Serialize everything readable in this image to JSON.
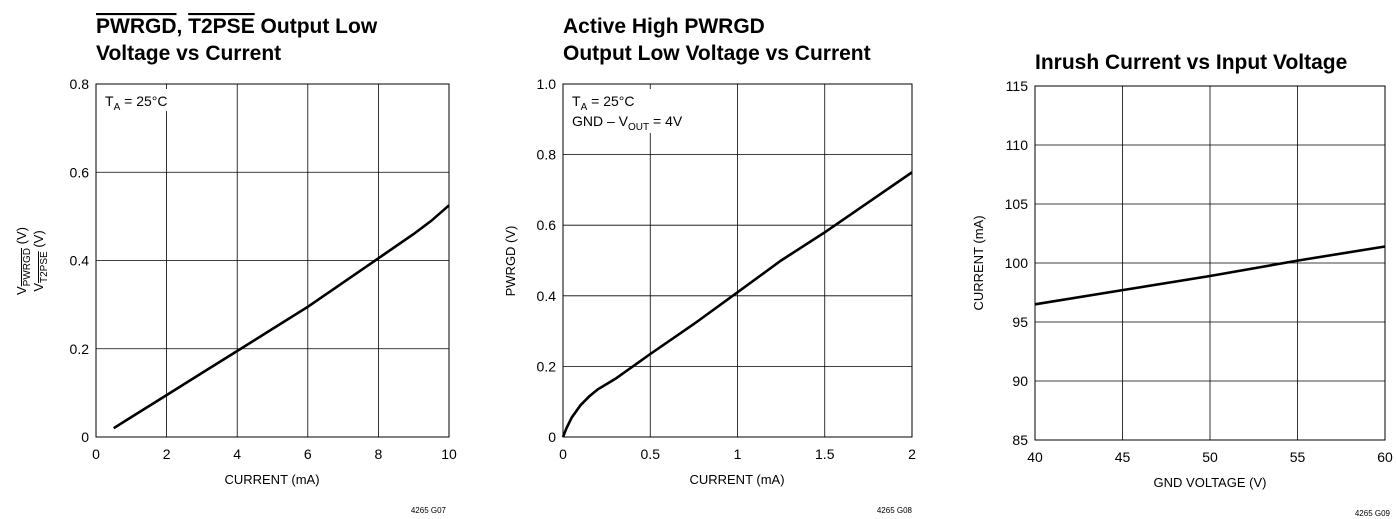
{
  "chart_data": [
    {
      "type": "line",
      "title_lines": [
        "PWRGD, T2PSE Output Low",
        "Voltage vs Current"
      ],
      "title_overlines": [
        "PWRGD",
        "T2PSE"
      ],
      "xlabel": "CURRENT (mA)",
      "ylabel_line1": {
        "main": "V",
        "sub": "PWRGD",
        "tail": " (V)"
      },
      "ylabel_line2": {
        "main": "V",
        "sub": "T2PSE",
        "tail": " (V)"
      },
      "xlim": [
        0,
        10
      ],
      "ylim": [
        0,
        0.8
      ],
      "xticks": [
        0,
        2,
        4,
        6,
        8,
        10
      ],
      "yticks": [
        0,
        0.2,
        0.4,
        0.6,
        0.8
      ],
      "xtick_labels": [
        "0",
        "2",
        "4",
        "6",
        "8",
        "10"
      ],
      "ytick_labels": [
        "0",
        "0.2",
        "0.4",
        "0.6",
        "0.8"
      ],
      "grid": true,
      "annotation": {
        "main": "T",
        "sub": "A",
        "tail": " = 25°C"
      },
      "code": "4265 G07",
      "series": [
        {
          "x": [
            0.5,
            1,
            2,
            3,
            4,
            5,
            6,
            7,
            8,
            9,
            9.5,
            10
          ],
          "y": [
            0.02,
            0.045,
            0.095,
            0.145,
            0.195,
            0.245,
            0.295,
            0.35,
            0.405,
            0.46,
            0.49,
            0.525
          ]
        }
      ]
    },
    {
      "type": "line",
      "title_lines": [
        "Active High PWRGD",
        "Output Low Voltage vs Current"
      ],
      "xlabel": "CURRENT (mA)",
      "ylabel": "PWRGD (V)",
      "xlim": [
        0,
        2
      ],
      "ylim": [
        0,
        1.0
      ],
      "xticks": [
        0,
        0.5,
        1,
        1.5,
        2
      ],
      "yticks": [
        0,
        0.2,
        0.4,
        0.6,
        0.8,
        1.0
      ],
      "xtick_labels": [
        "0",
        "0.5",
        "1",
        "1.5",
        "2"
      ],
      "ytick_labels": [
        "0",
        "0.2",
        "0.4",
        "0.6",
        "0.8",
        "1.0"
      ],
      "grid": true,
      "annotation_line1": {
        "main": "T",
        "sub": "A",
        "tail": " = 25°C"
      },
      "annotation_line2": {
        "main": "GND – V",
        "sub": "OUT",
        "tail": " = 4V"
      },
      "code": "4265 G08",
      "series": [
        {
          "x": [
            0,
            0.02,
            0.05,
            0.1,
            0.15,
            0.2,
            0.3,
            0.5,
            0.75,
            1.0,
            1.25,
            1.5,
            1.75,
            2.0
          ],
          "y": [
            0,
            0.025,
            0.055,
            0.09,
            0.115,
            0.135,
            0.165,
            0.235,
            0.32,
            0.41,
            0.5,
            0.58,
            0.665,
            0.75
          ]
        }
      ]
    },
    {
      "type": "line",
      "title_lines": [
        "Inrush Current vs Input Voltage"
      ],
      "xlabel": "GND VOLTAGE (V)",
      "ylabel": "CURRENT (mA)",
      "xlim": [
        40,
        60
      ],
      "ylim": [
        85,
        115
      ],
      "xticks": [
        40,
        45,
        50,
        55,
        60
      ],
      "yticks": [
        85,
        90,
        95,
        100,
        105,
        110,
        115
      ],
      "xtick_labels": [
        "40",
        "45",
        "50",
        "55",
        "60"
      ],
      "ytick_labels": [
        "85",
        "90",
        "95",
        "100",
        "105",
        "110",
        "115"
      ],
      "grid": true,
      "code": "4265 G09",
      "series": [
        {
          "x": [
            40,
            45,
            50,
            55,
            60
          ],
          "y": [
            96.5,
            97.7,
            98.9,
            100.2,
            101.4
          ]
        }
      ]
    }
  ]
}
